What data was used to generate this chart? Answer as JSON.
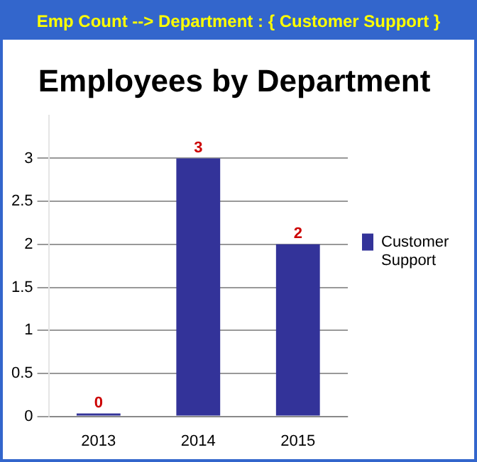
{
  "chart_data": {
    "type": "bar",
    "subtitle": "Emp Count --> Department : { Customer Support }",
    "title": "Employees by Department",
    "categories": [
      "2013",
      "2014",
      "2015"
    ],
    "series": [
      {
        "name": "Customer Support",
        "color": "#333399",
        "values": [
          0,
          3,
          2
        ]
      }
    ],
    "ylim": [
      0,
      3.5
    ],
    "yticks": [
      0,
      0.5,
      1,
      1.5,
      2,
      2.5,
      3
    ],
    "grid": "y",
    "legend": "right",
    "data_labels": true
  }
}
